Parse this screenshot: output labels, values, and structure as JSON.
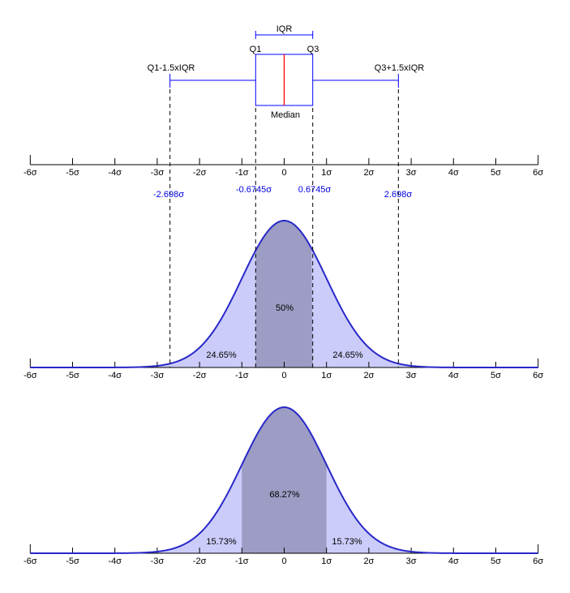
{
  "colors": {
    "box_stroke": "#0000ff",
    "median_stroke": "#ff0000",
    "curve_stroke": "#2828c8",
    "fill_light": "#ccccfa",
    "fill_dark": "#9c9cc4",
    "axis_color": "#000000",
    "guide_color": "#000000",
    "value_label_blue": "#0000e0"
  },
  "labels": {
    "iqr": "IQR",
    "q1": "Q1",
    "q3": "Q3",
    "median": "Median",
    "lower_fence": "Q1-1.5xIQR",
    "upper_fence": "Q3+1.5xIQR",
    "neg_whisker_value": "-2.698σ",
    "neg_quartile_value": "-0.6745σ",
    "pos_quartile_value": "0.6745σ",
    "pos_whisker_value": "2.698σ",
    "mid_center_pct": "50%",
    "mid_side_pct": "24.65%",
    "bot_center_pct": "68.27%",
    "bot_side_pct": "15.73%"
  },
  "axis": {
    "tick_sigmas": [
      -6,
      -5,
      -4,
      -3,
      -2,
      -1,
      0,
      1,
      2,
      3,
      4,
      5,
      6
    ],
    "tick_labels": [
      "-6σ",
      "-5σ",
      "-4σ",
      "-3σ",
      "-2σ",
      "-1σ",
      "0",
      "1σ",
      "2σ",
      "3σ",
      "4σ",
      "5σ",
      "6σ"
    ],
    "range_sigma": [
      -6,
      6
    ]
  },
  "chart_data": [
    {
      "type": "boxplot",
      "orientation": "horizontal",
      "units": "sigma",
      "median": 0,
      "q1": -0.6745,
      "q3": 0.6745,
      "whisker_low": -2.698,
      "whisker_high": 2.698,
      "whisker_rule": "1.5xIQR",
      "x_axis": {
        "range": [
          -6,
          6
        ],
        "tick_labels": [
          "-6σ",
          "-5σ",
          "-4σ",
          "-3σ",
          "-2σ",
          "-1σ",
          "0",
          "1σ",
          "2σ",
          "3σ",
          "4σ",
          "5σ",
          "6σ"
        ]
      },
      "annotations": [
        "IQR",
        "Q1",
        "Q3",
        "Median",
        "Q1-1.5xIQR",
        "Q3+1.5xIQR"
      ],
      "dashed_guides_sigma": [
        -2.698,
        -0.6745,
        0.6745,
        2.698
      ],
      "guide_value_labels": [
        "-2.698σ",
        "-0.6745σ",
        "0.6745σ",
        "2.698σ"
      ]
    },
    {
      "type": "area",
      "curve": "normal-pdf",
      "mean": 0,
      "sd": 1,
      "x_axis": {
        "range": [
          -6,
          6
        ],
        "tick_labels": [
          "-6σ",
          "-5σ",
          "-4σ",
          "-3σ",
          "-2σ",
          "-1σ",
          "0",
          "1σ",
          "2σ",
          "3σ",
          "4σ",
          "5σ",
          "6σ"
        ]
      },
      "dashed_guides_sigma": [
        -2.698,
        -0.6745,
        0.6745,
        2.698
      ],
      "regions": [
        {
          "from_sigma": -2.698,
          "to_sigma": -0.6745,
          "area_pct": 24.65,
          "label": "24.65%",
          "shade": "light"
        },
        {
          "from_sigma": -0.6745,
          "to_sigma": 0.6745,
          "area_pct": 50,
          "label": "50%",
          "shade": "dark"
        },
        {
          "from_sigma": 0.6745,
          "to_sigma": 2.698,
          "area_pct": 24.65,
          "label": "24.65%",
          "shade": "light"
        }
      ]
    },
    {
      "type": "area",
      "curve": "normal-pdf",
      "mean": 0,
      "sd": 1,
      "x_axis": {
        "range": [
          -6,
          6
        ],
        "tick_labels": [
          "-6σ",
          "-5σ",
          "-4σ",
          "-3σ",
          "-2σ",
          "-1σ",
          "0",
          "1σ",
          "2σ",
          "3σ",
          "4σ",
          "5σ",
          "6σ"
        ]
      },
      "regions": [
        {
          "from_sigma": -1,
          "to_sigma": 1,
          "area_pct": 68.27,
          "label": "68.27%",
          "shade": "dark"
        },
        {
          "from_sigma": -3.4,
          "to_sigma": -1,
          "area_pct": 15.73,
          "label": "15.73%",
          "shade": "light"
        },
        {
          "from_sigma": 1,
          "to_sigma": 3.4,
          "area_pct": 15.73,
          "label": "15.73%",
          "shade": "light"
        }
      ]
    }
  ]
}
